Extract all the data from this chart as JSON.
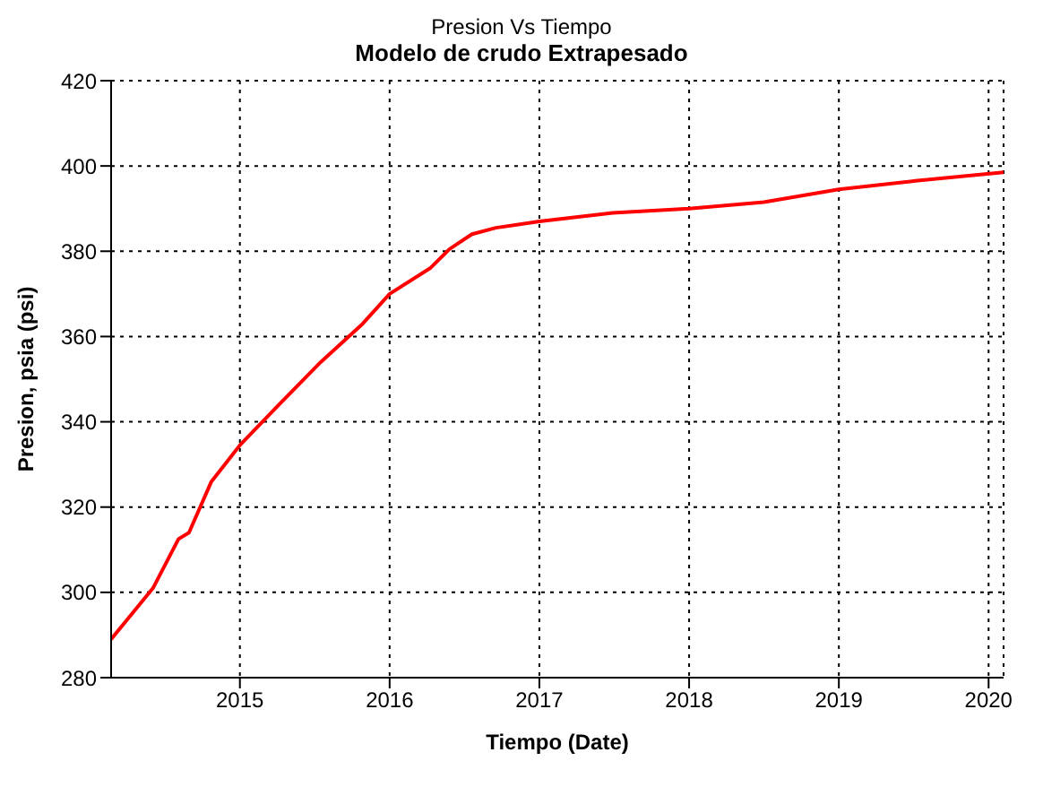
{
  "chart_data": {
    "type": "line",
    "title": "Presion Vs Tiempo",
    "subtitle": "Modelo de crudo Extrapesado",
    "xlabel": "Tiempo (Date)",
    "ylabel": "Presion, psia (psi)",
    "x": [
      2014.14,
      2014.42,
      2014.59,
      2014.66,
      2014.81,
      2015,
      2015.26,
      2015.54,
      2015.82,
      2016,
      2016.27,
      2016.4,
      2016.55,
      2016.71,
      2017,
      2017.49,
      2018,
      2018.5,
      2019,
      2019.51,
      2020.1
    ],
    "series": [
      {
        "color": "#ff0000",
        "values": [
          289,
          301,
          312.5,
          314,
          326,
          334.5,
          344,
          354,
          363,
          370,
          376,
          380.5,
          384,
          385.5,
          387,
          389,
          390,
          391.5,
          394.5,
          396.5,
          398.5
        ]
      }
    ],
    "xlim": [
      2014.14,
      2020.1
    ],
    "xticks": [
      2015,
      2016,
      2017,
      2018,
      2019,
      2020
    ],
    "ylim": [
      280,
      420
    ],
    "yticks": [
      280,
      300,
      320,
      340,
      360,
      380,
      400,
      420
    ],
    "grid": true,
    "legend": false,
    "marker": "none",
    "line_style": "solid"
  }
}
